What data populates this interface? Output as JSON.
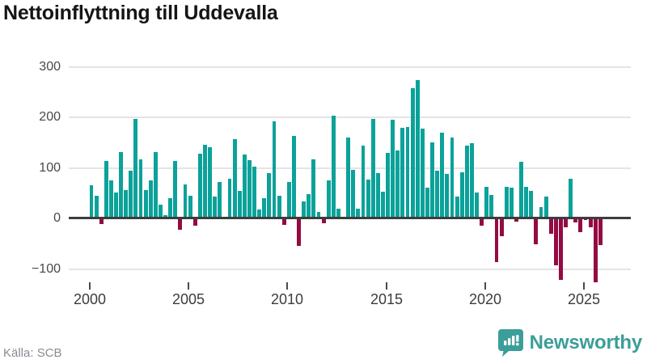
{
  "header": {
    "title": "Nettoinflyttning till Uddevalla"
  },
  "chart_data": {
    "type": "bar",
    "title": "Nettoinflyttning till Uddevalla",
    "granularity": "quarterly",
    "x_tick_labels": [
      "2000",
      "2005",
      "2010",
      "2015",
      "2020",
      "2025"
    ],
    "y_tick_labels": [
      "300",
      "200",
      "100",
      "0",
      "−100"
    ],
    "ylim": [
      -150,
      320
    ],
    "grid": "horizontal",
    "legend": "none",
    "series_name": "Nettoinflyttning",
    "years": [
      {
        "year": "2000",
        "values": [
          65,
          45,
          -10,
          113
        ]
      },
      {
        "year": "2001",
        "values": [
          76,
          52,
          132,
          56
        ]
      },
      {
        "year": "2002",
        "values": [
          94,
          197,
          117,
          56
        ]
      },
      {
        "year": "2003",
        "values": [
          76,
          131,
          27,
          7
        ]
      },
      {
        "year": "2004",
        "values": [
          40,
          113,
          -20,
          67
        ]
      },
      {
        "year": "2005",
        "values": [
          45,
          -12,
          128,
          145
        ]
      },
      {
        "year": "2006",
        "values": [
          141,
          43,
          72,
          4
        ]
      },
      {
        "year": "2007",
        "values": [
          78,
          157,
          54,
          127
        ]
      },
      {
        "year": "2008",
        "values": [
          115,
          102,
          17,
          40
        ]
      },
      {
        "year": "2009",
        "values": [
          90,
          192,
          45,
          -11
        ]
      },
      {
        "year": "2010",
        "values": [
          72,
          164,
          -52,
          33
        ]
      },
      {
        "year": "2011",
        "values": [
          48,
          117,
          13,
          -8
        ]
      },
      {
        "year": "2012",
        "values": [
          76,
          204,
          20,
          2
        ]
      },
      {
        "year": "2013",
        "values": [
          160,
          96,
          19,
          144
        ]
      },
      {
        "year": "2014",
        "values": [
          77,
          197,
          90,
          53
        ]
      },
      {
        "year": "2015",
        "values": [
          130,
          195,
          135,
          179
        ]
      },
      {
        "year": "2016",
        "values": [
          181,
          257,
          274,
          177
        ]
      },
      {
        "year": "2017",
        "values": [
          61,
          150,
          94,
          169
        ]
      },
      {
        "year": "2018",
        "values": [
          88,
          160,
          44,
          92
        ]
      },
      {
        "year": "2019",
        "values": [
          144,
          149,
          52,
          -13
        ]
      },
      {
        "year": "2020",
        "values": [
          63,
          47,
          -85,
          -34
        ]
      },
      {
        "year": "2021",
        "values": [
          62,
          61,
          -4,
          112
        ]
      },
      {
        "year": "2022",
        "values": [
          63,
          55,
          -49,
          23
        ]
      },
      {
        "year": "2023",
        "values": [
          43,
          -28,
          -91,
          -120
        ]
      },
      {
        "year": "2024",
        "values": [
          -16,
          78,
          -7,
          -26
        ]
      },
      {
        "year": "2025",
        "values": [
          -2,
          -16,
          -124,
          -51
        ]
      }
    ]
  },
  "colors": {
    "bar_positive": "#0ba29a",
    "bar_negative": "#940b43",
    "gridline": "#e4e4e8",
    "zero_line": "#3d3d3d",
    "brand": "#3b9e98"
  },
  "footer": {
    "source": "Källa: SCB",
    "brand": "Newsworthy"
  }
}
